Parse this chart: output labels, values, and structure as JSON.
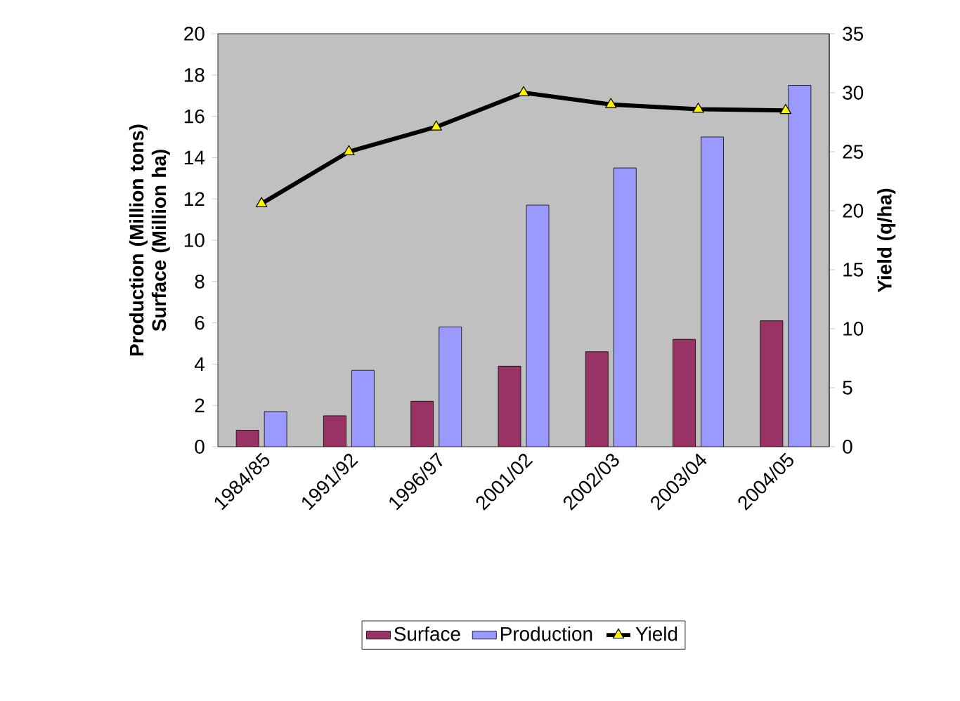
{
  "chart_data": {
    "type": "bar",
    "ylabel": "Production (Million tons) Surface (Million ha)",
    "y2label": "Yield (q/ha)",
    "categories": [
      "1984/85",
      "1991/92",
      "1996/97",
      "2001/02",
      "2002/03",
      "2003/04",
      "2004/05"
    ],
    "series": [
      {
        "name": "Surface",
        "color": "#993366",
        "values": [
          0.8,
          1.5,
          2.2,
          3.9,
          4.6,
          5.2,
          6.1
        ]
      },
      {
        "name": "Production",
        "color": "#9999ff",
        "values": [
          1.7,
          3.7,
          5.8,
          11.7,
          13.5,
          15.0,
          17.5
        ]
      },
      {
        "name": "Yield",
        "type": "line",
        "axis": "y2",
        "color": "#000000",
        "marker": "triangle",
        "values": [
          20.6,
          25.0,
          27.1,
          30.0,
          29.0,
          28.6,
          28.5
        ]
      }
    ],
    "ylim": [
      0,
      20
    ],
    "yticks": [
      0,
      2,
      4,
      6,
      8,
      10,
      12,
      14,
      16,
      18,
      20
    ],
    "y2lim": [
      0,
      35
    ],
    "y2ticks": [
      0,
      5,
      10,
      15,
      20,
      25,
      30,
      35
    ],
    "grid": false,
    "legend": "bottom"
  }
}
